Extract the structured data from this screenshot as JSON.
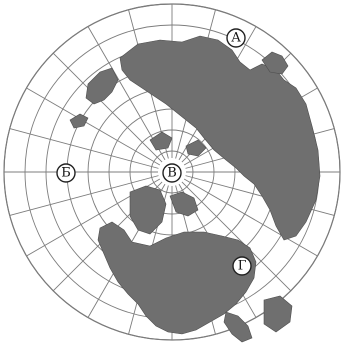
{
  "map": {
    "projection": "polar-azimuthal",
    "center": "north-pole",
    "colors": {
      "land": "#6f6f6f",
      "ocean": "#ffffff",
      "grid": "#7d7d7d"
    },
    "markers": [
      {
        "id": "a",
        "label": "А"
      },
      {
        "id": "b",
        "label": "Б"
      },
      {
        "id": "v",
        "label": "В"
      },
      {
        "id": "g",
        "label": "Г"
      }
    ]
  }
}
